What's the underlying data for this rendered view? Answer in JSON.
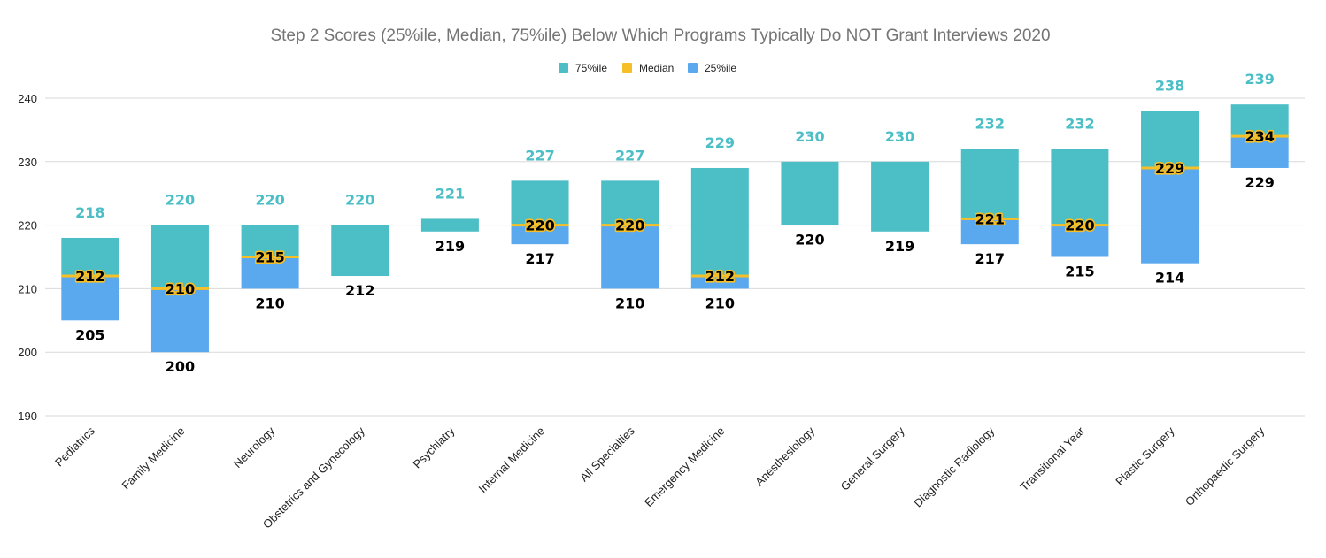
{
  "chart_data": {
    "type": "bar",
    "title": "Step 2 Scores (25%ile, Median, 75%ile) Below Which Programs Typically Do NOT Grant Interviews 2020",
    "xlabel": "",
    "ylabel": "",
    "ylim": [
      190,
      240
    ],
    "yticks": [
      190,
      200,
      210,
      220,
      230,
      240
    ],
    "grid": true,
    "legend_position": "top-center",
    "colors": {
      "p75": "#4bbec6",
      "median": "#f6bf26",
      "p25": "#5aa9ef",
      "top_label": "#4bbec6",
      "axis_text": "#222222",
      "grid": "#d9d9d9",
      "title": "#757575"
    },
    "legend": [
      {
        "key": "p75",
        "label": "75%ile"
      },
      {
        "key": "median",
        "label": "Median"
      },
      {
        "key": "p25",
        "label": "25%ile"
      }
    ],
    "categories": [
      {
        "name": "Pediatrics",
        "base": 205,
        "p25": 212,
        "median": 212,
        "p75": 218,
        "show_median": true
      },
      {
        "name": "Family Medicine",
        "base": 200,
        "p25": 210,
        "median": 210,
        "p75": 220,
        "show_median": true
      },
      {
        "name": "Neurology",
        "base": 210,
        "p25": 215,
        "median": 215,
        "p75": 220,
        "show_median": true
      },
      {
        "name": "Obstetrics and Gynecology",
        "base": 212,
        "p25": 212,
        "median": 212,
        "p75": 220,
        "show_median": false
      },
      {
        "name": "Psychiatry",
        "base": 219,
        "p25": 219,
        "median": 219,
        "p75": 221,
        "show_median": false
      },
      {
        "name": "Internal Medicine",
        "base": 217,
        "p25": 220,
        "median": 220,
        "p75": 227,
        "show_median": true
      },
      {
        "name": "All Specialties",
        "base": 210,
        "p25": 220,
        "median": 220,
        "p75": 227,
        "show_median": true
      },
      {
        "name": "Emergency Medicine",
        "base": 210,
        "p25": 212,
        "median": 212,
        "p75": 229,
        "show_median": true
      },
      {
        "name": "Anesthesiology",
        "base": 220,
        "p25": 220,
        "median": 220,
        "p75": 230,
        "show_median": false
      },
      {
        "name": "General Surgery",
        "base": 219,
        "p25": 219,
        "median": 219,
        "p75": 230,
        "show_median": false
      },
      {
        "name": "Diagnostic Radiology",
        "base": 217,
        "p25": 221,
        "median": 221,
        "p75": 232,
        "show_median": true
      },
      {
        "name": "Transitional Year",
        "base": 215,
        "p25": 220,
        "median": 220,
        "p75": 232,
        "show_median": true
      },
      {
        "name": "Plastic Surgery",
        "base": 214,
        "p25": 229,
        "median": 229,
        "p75": 238,
        "show_median": true
      },
      {
        "name": "Orthopaedic Surgery",
        "base": 229,
        "p25": 234,
        "median": 234,
        "p75": 239,
        "show_median": true
      }
    ]
  }
}
